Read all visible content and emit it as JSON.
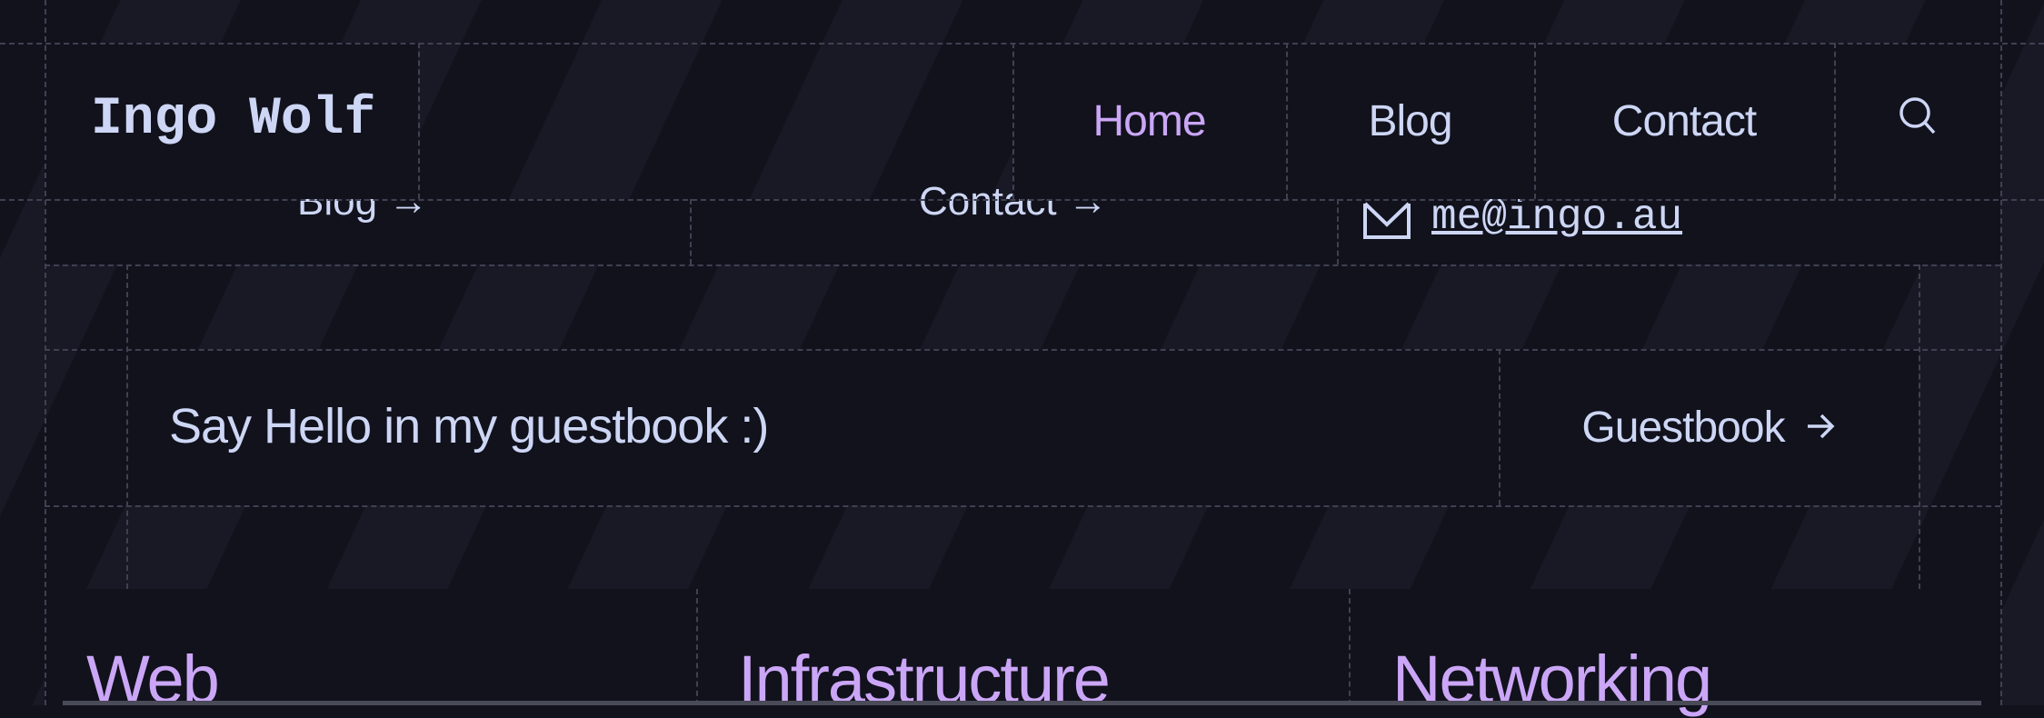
{
  "header": {
    "logo": "Ingo Wolf",
    "nav": [
      {
        "label": "Home",
        "active": true
      },
      {
        "label": "Blog",
        "active": false
      },
      {
        "label": "Contact",
        "active": false
      }
    ],
    "search_icon": "search-icon"
  },
  "behind_row": {
    "blog_link": "Blog →",
    "contact_link": "Contact →",
    "email": "me@ingo.au",
    "email_icon": "envelope-icon"
  },
  "guestbook": {
    "text": "Say Hello in my guestbook :)",
    "button_label": "Guestbook",
    "button_icon": "arrow-right-icon"
  },
  "categories": [
    "Web",
    "Infrastructure",
    "Networking"
  ],
  "colors": {
    "background": "#11121c",
    "text": "#cdd6f4",
    "accent": "#cba6f7",
    "stripe": "#181925"
  }
}
